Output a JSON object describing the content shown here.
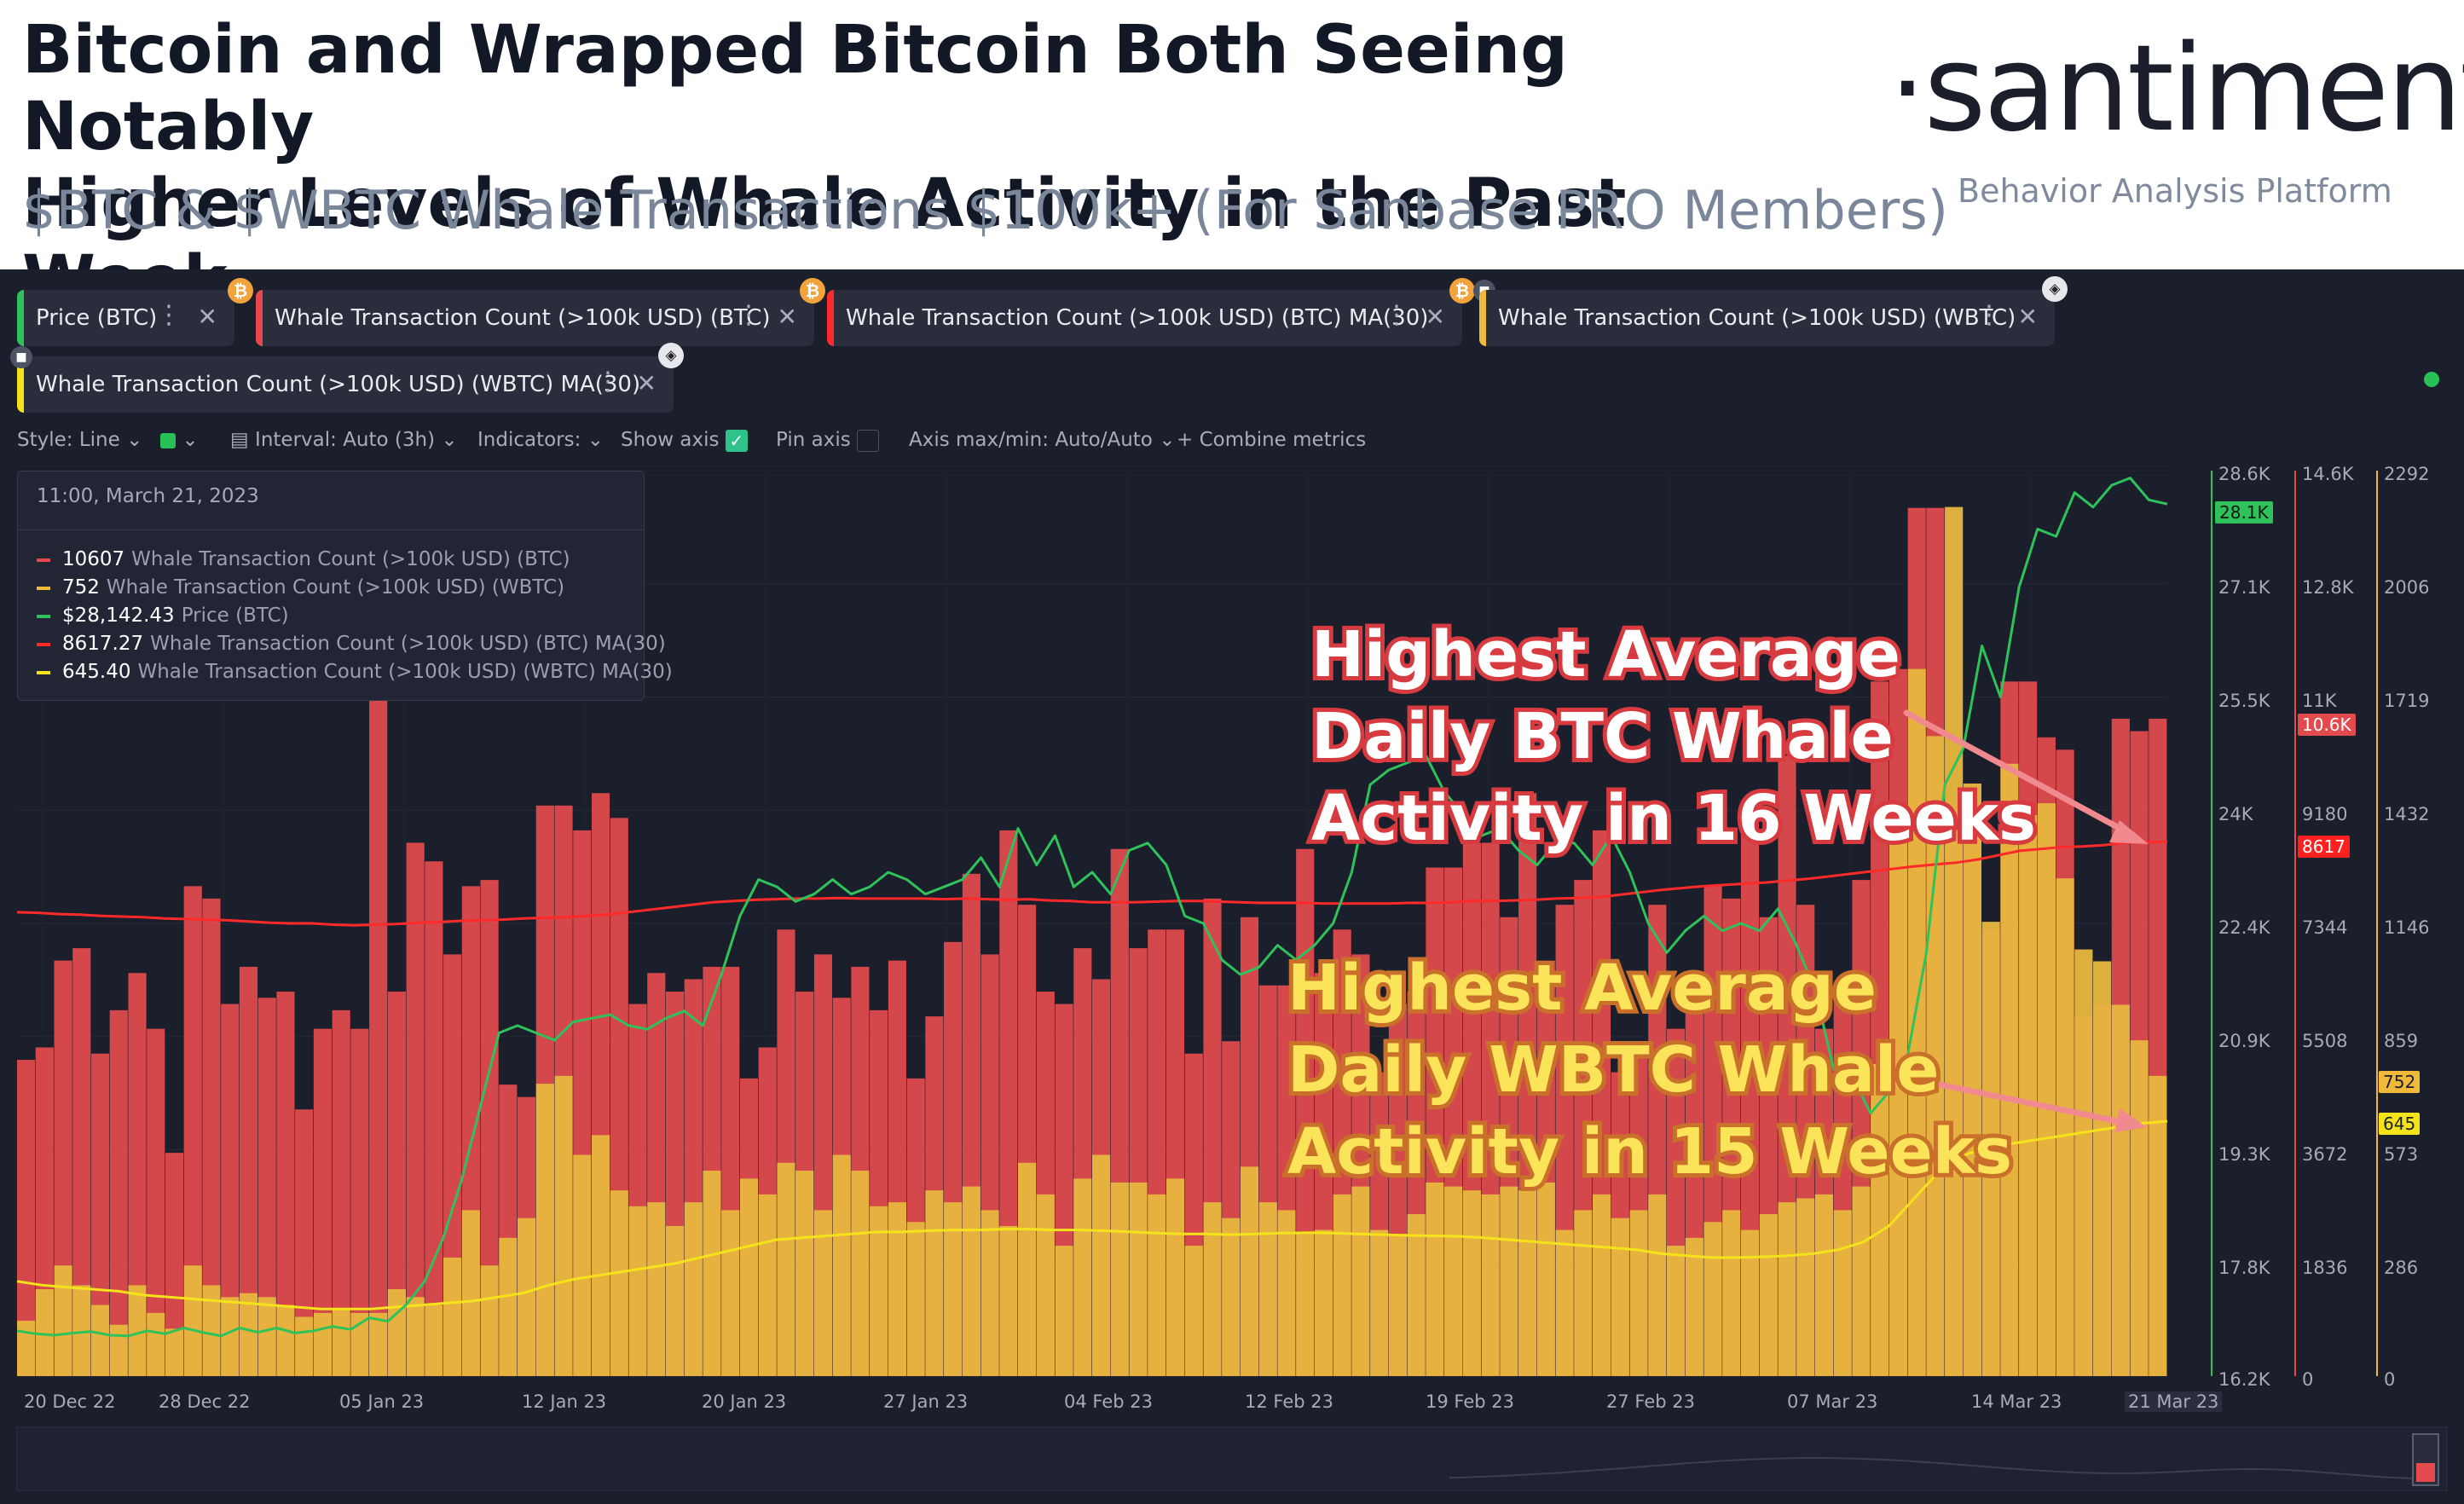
{
  "header": {
    "title_line1": "Bitcoin and Wrapped Bitcoin Both Seeing Notably",
    "title_line2": "Higher Levels of Whale Activity in the Past Week",
    "subtitle": "$BTC & $WBTC Whale Transactions $100k+ (For Sanbase PRO Members)",
    "brand": "·santiment·",
    "brand_tagline": "Behavior Analysis Platform"
  },
  "metric_tabs": [
    {
      "label": "Price (BTC)",
      "color": "#2fc25b",
      "icon": "bitcoin-icon"
    },
    {
      "label": "Whale Transaction Count (>100k USD) (BTC)",
      "color": "#e8474b",
      "icon": "bitcoin-icon"
    },
    {
      "label": "Whale Transaction Count (>100k USD) (BTC) MA(30)",
      "color": "#ff2a2a",
      "icon": "bitcoin-icon"
    },
    {
      "label": "Whale Transaction Count (>100k USD) (WBTC)",
      "color": "#f0b93a",
      "icon": "wbtc-icon"
    },
    {
      "label": "Whale Transaction Count (>100k USD) (WBTC) MA(30)",
      "color": "#f4e31a",
      "icon": "wbtc-icon"
    }
  ],
  "toolbar": {
    "style": "Style: Line",
    "interval": "Interval: Auto (3h)",
    "indicators": "Indicators:",
    "show_axis": "Show axis",
    "pin_axis": "Pin axis",
    "axis_maxmin": "Axis max/min: Auto/Auto",
    "combine": "+ Combine metrics"
  },
  "tooltip": {
    "date": "11:00, March 21, 2023",
    "rows": [
      {
        "value": "10607",
        "label": "Whale Transaction Count (>100k USD) (BTC)",
        "color": "#e8474b"
      },
      {
        "value": "752",
        "label": "Whale Transaction Count (>100k USD) (WBTC)",
        "color": "#f0b93a"
      },
      {
        "value": "$28,142.43",
        "label": "Price (BTC)",
        "color": "#2fc25b"
      },
      {
        "value": "8617.27",
        "label": "Whale Transaction Count (>100k USD) (BTC) MA(30)",
        "color": "#ff2a2a"
      },
      {
        "value": "645.40",
        "label": "Whale Transaction Count (>100k USD) (WBTC) MA(30)",
        "color": "#f4e31a"
      }
    ]
  },
  "annotations": {
    "btc": [
      "Highest Average",
      "Daily BTC Whale",
      "Activity in 16 Weeks"
    ],
    "wbtc": [
      "Highest Average",
      "Daily WBTC Whale",
      "Activity in 15 Weeks"
    ]
  },
  "chart_data": {
    "type": "bar",
    "x_labels": [
      "20 Dec 22",
      "28 Dec 22",
      "05 Jan 23",
      "12 Jan 23",
      "20 Jan 23",
      "27 Jan 23",
      "04 Feb 23",
      "12 Feb 23",
      "19 Feb 23",
      "27 Feb 23",
      "07 Mar 23",
      "14 Mar 23",
      "21 Mar 23"
    ],
    "axes": {
      "price": {
        "ticks": [
          "28.6K",
          "27.1K",
          "25.5K",
          "24K",
          "22.4K",
          "20.9K",
          "19.3K",
          "17.8K",
          "16.2K"
        ],
        "min": 16200,
        "max": 28600,
        "current": "28.1K"
      },
      "btc_whale": {
        "ticks": [
          "14.6K",
          "12.8K",
          "11K",
          "9180",
          "7344",
          "5508",
          "3672",
          "1836",
          "0"
        ],
        "min": 0,
        "max": 14600,
        "current": "10.6K",
        "ma": "8617"
      },
      "wbtc_whale": {
        "ticks": [
          "2292",
          "2006",
          "1719",
          "1432",
          "1146",
          "859",
          "573",
          "286",
          "0"
        ],
        "min": 0,
        "max": 2292,
        "current": "752",
        "ma": "645"
      }
    },
    "series": [
      {
        "name": "Whale Transaction Count (>100k USD) (BTC)",
        "type": "bar",
        "color": "#e24a4e",
        "values": [
          5100,
          5300,
          6700,
          6900,
          5200,
          5900,
          6500,
          5600,
          3600,
          7900,
          7700,
          6000,
          6600,
          6100,
          6200,
          4300,
          5600,
          5900,
          5600,
          12800,
          6200,
          8600,
          8300,
          6800,
          7900,
          8000,
          4700,
          4500,
          9200,
          9200,
          8800,
          9400,
          9000,
          6000,
          6500,
          6200,
          6400,
          6600,
          6600,
          4800,
          5300,
          7200,
          6200,
          6800,
          6100,
          6600,
          5900,
          6700,
          4800,
          5800,
          7000,
          8100,
          6800,
          8800,
          7600,
          6200,
          6000,
          6900,
          6400,
          8500,
          6900,
          7200,
          7200,
          5200,
          7700,
          5400,
          7400,
          6300,
          6300,
          8500,
          6500,
          7200,
          6800,
          4900,
          6000,
          6200,
          8200,
          8200,
          8600,
          8600,
          7400,
          9400,
          6700,
          7600,
          8000,
          8800,
          4900,
          5400,
          7600,
          5600,
          6200,
          7900,
          7700,
          8900,
          7400,
          10000,
          7600,
          5600,
          6200,
          8000,
          11200,
          11400,
          14000,
          14000,
          8800,
          8800,
          7200,
          11200,
          11200,
          10300,
          10100,
          5800,
          6000,
          10600,
          10400,
          10600
        ]
      },
      {
        "name": "Whale Transaction Count (>100k USD) (WBTC)",
        "type": "bar",
        "color": "#e8b73e",
        "values": [
          140,
          220,
          280,
          230,
          180,
          130,
          230,
          160,
          120,
          280,
          230,
          200,
          210,
          200,
          180,
          150,
          160,
          170,
          160,
          160,
          220,
          200,
          180,
          300,
          420,
          280,
          350,
          400,
          740,
          760,
          560,
          610,
          470,
          430,
          440,
          380,
          440,
          520,
          420,
          500,
          460,
          540,
          520,
          420,
          560,
          520,
          430,
          440,
          390,
          470,
          440,
          480,
          420,
          380,
          540,
          460,
          330,
          500,
          560,
          490,
          490,
          460,
          500,
          330,
          440,
          400,
          530,
          440,
          420,
          360,
          370,
          460,
          480,
          370,
          360,
          410,
          490,
          480,
          470,
          460,
          480,
          470,
          490,
          370,
          420,
          460,
          400,
          420,
          460,
          330,
          350,
          390,
          420,
          370,
          410,
          440,
          450,
          460,
          420,
          480,
          790,
          1380,
          1790,
          1620,
          2200,
          1500,
          1150,
          1550,
          1420,
          1450,
          1260,
          1080,
          1050,
          940,
          850,
          760
        ]
      },
      {
        "name": "Whale Transaction Count (>100k USD) (BTC) MA(30)",
        "type": "line",
        "color": "#ff2a2a",
        "values": [
          7480,
          7470,
          7450,
          7440,
          7420,
          7410,
          7400,
          7380,
          7370,
          7360,
          7350,
          7330,
          7310,
          7300,
          7300,
          7280,
          7270,
          7280,
          7290,
          7310,
          7320,
          7340,
          7350,
          7360,
          7380,
          7390,
          7400,
          7420,
          7440,
          7480,
          7520,
          7560,
          7600,
          7640,
          7660,
          7680,
          7690,
          7700,
          7700,
          7710,
          7700,
          7700,
          7700,
          7700,
          7690,
          7700,
          7690,
          7680,
          7690,
          7670,
          7660,
          7640,
          7640,
          7640,
          7650,
          7660,
          7660,
          7650,
          7640,
          7630,
          7630,
          7630,
          7620,
          7620,
          7620,
          7620,
          7630,
          7630,
          7640,
          7660,
          7660,
          7670,
          7680,
          7700,
          7710,
          7720,
          7760,
          7800,
          7840,
          7870,
          7900,
          7920,
          7940,
          7960,
          7990,
          8020,
          8060,
          8100,
          8140,
          8180,
          8220,
          8250,
          8280,
          8330,
          8400,
          8470,
          8500,
          8530,
          8540,
          8560,
          8600,
          8610,
          8617
        ]
      },
      {
        "name": "Whale Transaction Count (>100k USD) (WBTC) MA(30)",
        "type": "line",
        "color": "#f4e31a",
        "values": [
          240,
          230,
          225,
          220,
          215,
          205,
          200,
          195,
          190,
          185,
          180,
          175,
          170,
          170,
          170,
          175,
          180,
          185,
          190,
          200,
          210,
          230,
          245,
          255,
          265,
          275,
          285,
          300,
          315,
          330,
          345,
          350,
          355,
          360,
          365,
          365,
          368,
          370,
          370,
          372,
          372,
          370,
          370,
          368,
          365,
          362,
          360,
          360,
          358,
          360,
          362,
          363,
          362,
          360,
          358,
          356,
          355,
          354,
          350,
          345,
          340,
          335,
          330,
          325,
          320,
          310,
          305,
          300,
          300,
          302,
          305,
          310,
          320,
          340,
          380,
          450,
          520,
          560,
          580,
          590,
          600,
          610,
          620,
          630,
          640,
          645.4
        ]
      },
      {
        "name": "Price (BTC)",
        "type": "line",
        "color": "#2fc25b",
        "values": [
          16820,
          16780,
          16760,
          16790,
          16810,
          16760,
          16750,
          16820,
          16780,
          16860,
          16800,
          16750,
          16860,
          16800,
          16860,
          16790,
          16820,
          16880,
          16840,
          17000,
          16950,
          17180,
          17500,
          18100,
          18900,
          19900,
          20900,
          21000,
          20900,
          20800,
          21050,
          21100,
          21150,
          21000,
          20950,
          21100,
          21200,
          21000,
          21700,
          22500,
          23000,
          22900,
          22700,
          22800,
          23000,
          22800,
          22900,
          23100,
          23000,
          22800,
          22900,
          23000,
          23300,
          22900,
          23700,
          23200,
          23600,
          22900,
          23100,
          22800,
          23400,
          23500,
          23200,
          22500,
          22400,
          21900,
          21700,
          21800,
          22100,
          21900,
          22100,
          22400,
          23100,
          24300,
          24500,
          24600,
          24700,
          24200,
          23900,
          23600,
          23700,
          23400,
          23200,
          23500,
          23500,
          23200,
          23600,
          23100,
          22400,
          22000,
          22300,
          22500,
          22300,
          22400,
          22300,
          22600,
          22100,
          21500,
          20400,
          20300,
          19800,
          20100,
          20600,
          22000,
          24300,
          24800,
          26200,
          25500,
          27000,
          27800,
          27700,
          28300,
          28100,
          28400,
          28500,
          28200,
          28142
        ]
      }
    ]
  }
}
